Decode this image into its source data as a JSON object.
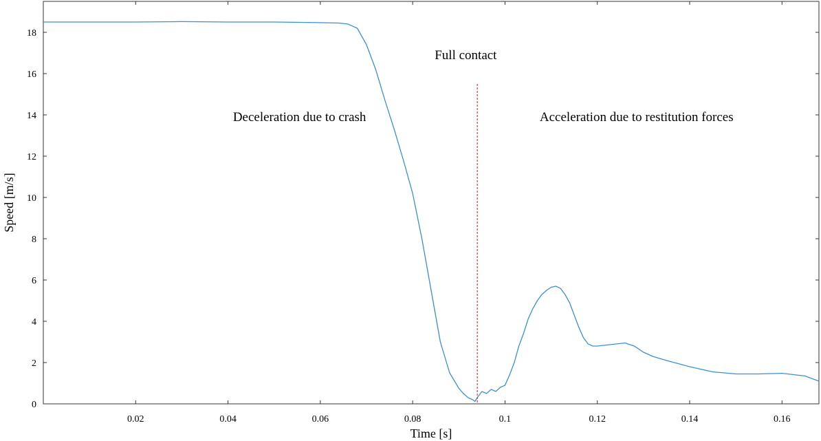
{
  "chart_data": {
    "type": "line",
    "xlabel": "Time [s]",
    "ylabel": "Speed  [m/s]",
    "xlim": [
      0,
      0.168
    ],
    "ylim": [
      0,
      19.5
    ],
    "xticks": [
      0.02,
      0.04,
      0.06,
      0.08,
      0.1,
      0.12,
      0.14,
      0.16
    ],
    "xtick_labels": [
      "0.02",
      "0.04",
      "0.06",
      "0.08",
      "0.1",
      "0.12",
      "0.14",
      "0.16"
    ],
    "yticks": [
      0,
      2,
      4,
      6,
      8,
      10,
      12,
      14,
      16,
      18
    ],
    "ytick_labels": [
      "0",
      "2",
      "4",
      "6",
      "8",
      "10",
      "12",
      "14",
      "16",
      "18"
    ],
    "grid": false,
    "line_color": "#3a8fd0",
    "marker_color": "#b22222",
    "series": [
      {
        "x": [
          0,
          0.01,
          0.02,
          0.03,
          0.04,
          0.05,
          0.06,
          0.064,
          0.066,
          0.068,
          0.07,
          0.072,
          0.074,
          0.076,
          0.078,
          0.08,
          0.082,
          0.084,
          0.086,
          0.088,
          0.09,
          0.091,
          0.092,
          0.093,
          0.0935,
          0.094,
          0.095,
          0.096,
          0.097,
          0.098,
          0.099,
          0.1,
          0.101,
          0.102,
          0.103,
          0.104,
          0.105,
          0.106,
          0.107,
          0.108,
          0.109,
          0.11,
          0.111,
          0.112,
          0.113,
          0.114,
          0.115,
          0.116,
          0.117,
          0.118,
          0.119,
          0.12,
          0.122,
          0.124,
          0.126,
          0.128,
          0.13,
          0.132,
          0.135,
          0.14,
          0.145,
          0.15,
          0.155,
          0.16,
          0.165,
          0.168
        ],
        "y": [
          18.5,
          18.5,
          18.5,
          18.52,
          18.5,
          18.5,
          18.47,
          18.45,
          18.4,
          18.2,
          17.4,
          16.2,
          14.7,
          13.3,
          11.8,
          10.2,
          8.0,
          5.5,
          3.0,
          1.5,
          0.75,
          0.5,
          0.3,
          0.2,
          0.12,
          0.3,
          0.6,
          0.5,
          0.7,
          0.6,
          0.8,
          0.9,
          1.4,
          2.0,
          2.8,
          3.4,
          4.1,
          4.6,
          5.0,
          5.3,
          5.5,
          5.65,
          5.7,
          5.6,
          5.3,
          4.9,
          4.3,
          3.7,
          3.2,
          2.9,
          2.8,
          2.8,
          2.85,
          2.9,
          2.95,
          2.8,
          2.5,
          2.3,
          2.1,
          1.8,
          1.55,
          1.45,
          1.45,
          1.48,
          1.35,
          1.1
        ]
      }
    ],
    "vline": {
      "x": 0.094,
      "y_top": 15.5
    },
    "annotations": [
      {
        "text": "Full contact",
        "x": 0.0915,
        "y": 16.7,
        "anchor": "middle"
      },
      {
        "text": "Deceleration due to crash",
        "x": 0.0555,
        "y": 13.7,
        "anchor": "middle"
      },
      {
        "text": "Acceleration due to restitution forces",
        "x": 0.1285,
        "y": 13.7,
        "anchor": "middle"
      }
    ]
  }
}
